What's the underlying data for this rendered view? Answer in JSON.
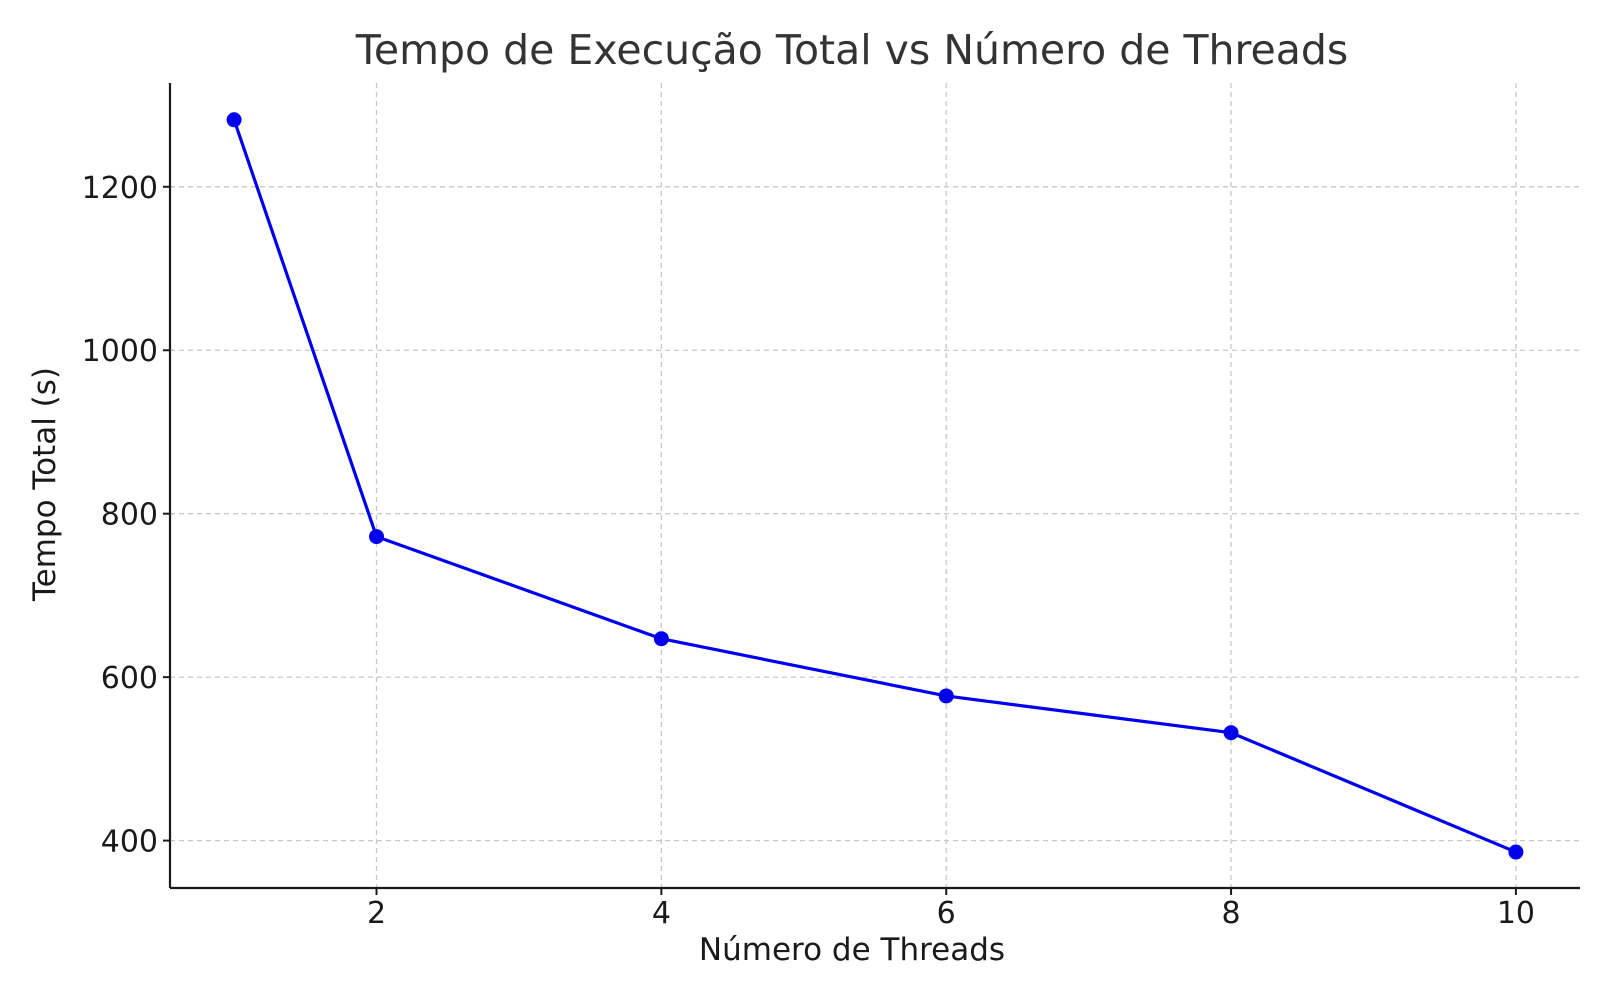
{
  "chart_data": {
    "type": "line",
    "title": "Tempo de Execução Total vs Número de Threads",
    "xlabel": "Número de Threads",
    "ylabel": "Tempo Total (s)",
    "x": [
      1,
      2,
      4,
      6,
      8,
      10
    ],
    "series": [
      {
        "values": [
          1282,
          772,
          647,
          577,
          532,
          386
        ],
        "color": "#0000ee",
        "marker": "circle"
      }
    ],
    "xlim": [
      0.55,
      10.45
    ],
    "ylim": [
      342,
      1327
    ],
    "xticks": [
      2,
      4,
      6,
      8,
      10
    ],
    "yticks": [
      400,
      600,
      800,
      1000,
      1200
    ],
    "grid": true
  }
}
